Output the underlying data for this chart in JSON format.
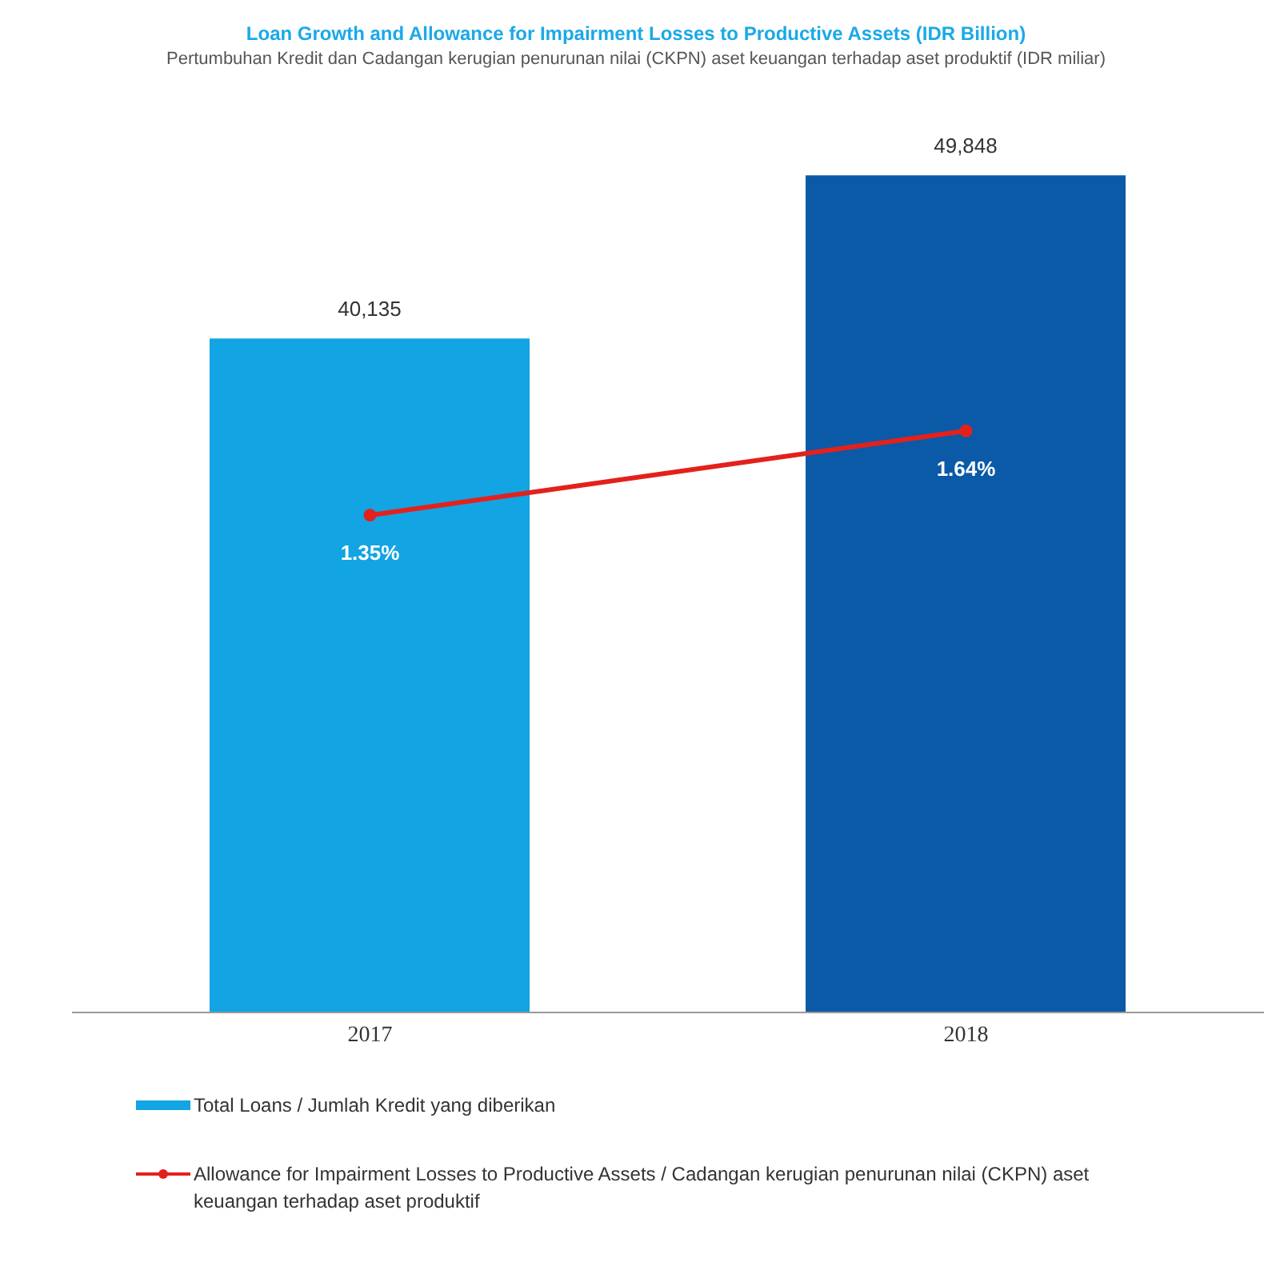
{
  "chart_data": {
    "type": "bar",
    "title": "Loan Growth and Allowance for Impairment Losses to Productive Assets (IDR Billion)",
    "subtitle": "Pertumbuhan Kredit dan Cadangan kerugian penurunan nilai (CKPN) aset keuangan terhadap aset produktif (IDR miliar)",
    "categories": [
      "2017",
      "2018"
    ],
    "series": [
      {
        "name": "Total Loans / Jumlah Kredit yang diberikan",
        "color": "#12a4e3",
        "colors": [
          "#12a4e3",
          "#0a5aa8"
        ],
        "values": [
          40135,
          49848
        ],
        "value_labels": [
          "40,135",
          "49,848"
        ]
      },
      {
        "name": "Allowance for Impairment Losses to Productive Assets / Cadangan kerugian penurunan nilai (CKPN) aset keuangan terhadap aset produktif",
        "type": "line",
        "axis": "y2",
        "color": "#e3211c",
        "values": [
          1.35,
          1.64
        ],
        "value_labels": [
          "1.35%",
          "1.64%"
        ],
        "marker": "circle"
      }
    ],
    "tick_labels": "x",
    "legend": "bottom"
  }
}
